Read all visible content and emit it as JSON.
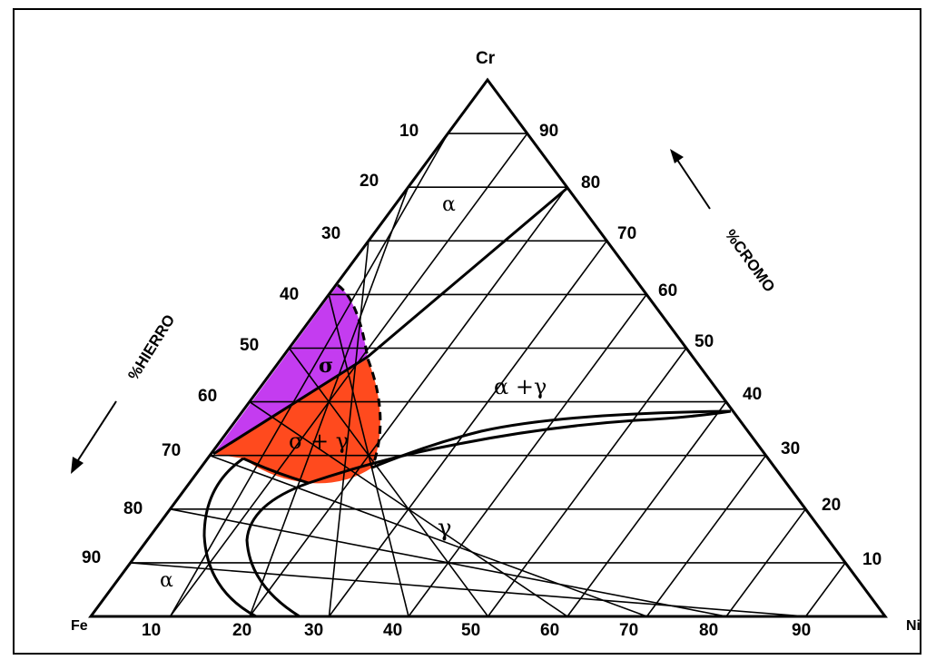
{
  "diagram": {
    "vertices": {
      "top": "Cr",
      "bottom_left": "Fe",
      "bottom_right": "Ni"
    },
    "left_edge_ticks": [
      "10",
      "20",
      "30",
      "40",
      "50",
      "60",
      "70",
      "80",
      "90"
    ],
    "right_edge_ticks": [
      "90",
      "80",
      "70",
      "60",
      "50",
      "40",
      "30",
      "20",
      "10"
    ],
    "bottom_edge_ticks": [
      "10",
      "20",
      "30",
      "40",
      "50",
      "60",
      "70",
      "80",
      "90"
    ],
    "axis_labels": {
      "iron": "%HIERRO",
      "chromium": "%CROMO"
    },
    "phase_labels": {
      "alpha_top": "α",
      "alpha_bottom": "α",
      "sigma": "σ",
      "sigma_gamma": "σ + γ",
      "alpha_gamma": "α +γ",
      "gamma": "γ"
    },
    "colors": {
      "sigma_region": "#c43cf0",
      "sigma_gamma_region": "#ff4a1e",
      "lines": "#000000"
    }
  }
}
